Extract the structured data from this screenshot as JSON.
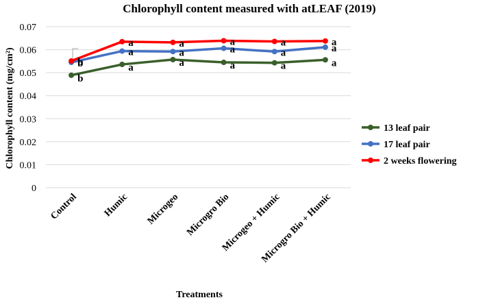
{
  "chart_data": {
    "type": "line",
    "title": "Chlorophyll content measured with atLEAF (2019)",
    "xlabel": "Treatments",
    "ylabel": "Chlorophyll content (mg/cm²)",
    "categories": [
      "Control",
      "Humic",
      "Microgeo",
      "Microgro Bio",
      "Microgeo + Humic",
      "Microgro Bio + Humic"
    ],
    "ylim": [
      0,
      0.07
    ],
    "yticks": [
      "0",
      "0.01",
      "0.02",
      "0.03",
      "0.04",
      "0.05",
      "0.06",
      "0.07"
    ],
    "grid": true,
    "legend_position": "right",
    "series": [
      {
        "name": "13 leaf pair",
        "color": "#3a5f2b",
        "values": [
          0.0489,
          0.0536,
          0.0557,
          0.0545,
          0.0543,
          0.0556
        ],
        "labels": [
          "b",
          "a",
          "a",
          "a",
          "a",
          "a"
        ]
      },
      {
        "name": "17 leaf pair",
        "color": "#4472c4",
        "values": [
          0.0545,
          0.0594,
          0.0592,
          0.0606,
          0.0592,
          0.0611
        ],
        "labels": [
          "b",
          "a",
          "a",
          "a",
          "a",
          "a"
        ]
      },
      {
        "name": "2 weeks flowering",
        "color": "#ff0000",
        "values": [
          0.0551,
          0.0635,
          0.0632,
          0.0639,
          0.0636,
          0.0638
        ],
        "labels": [
          "b",
          "a",
          "a",
          "a",
          "a",
          "a"
        ]
      }
    ]
  }
}
